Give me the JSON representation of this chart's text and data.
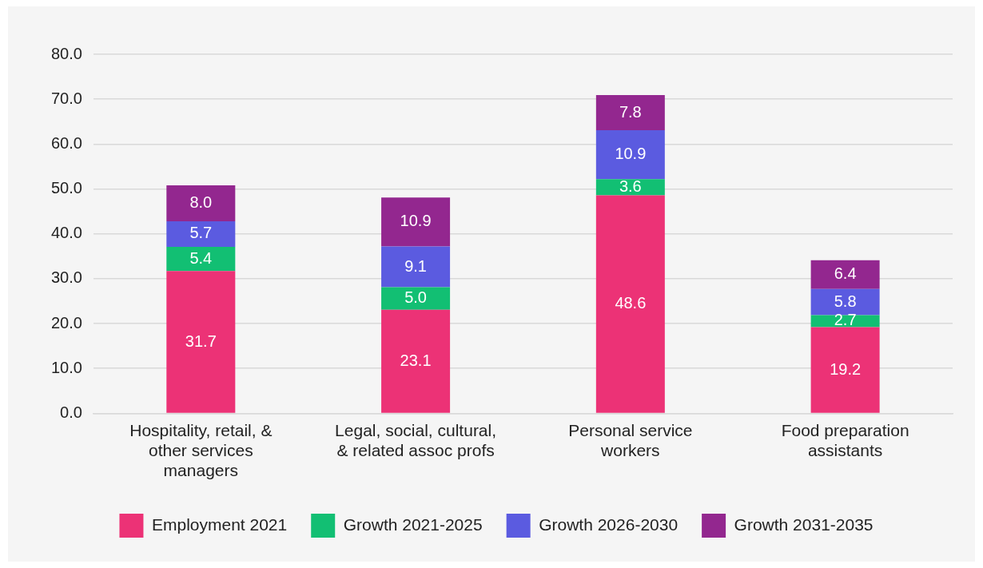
{
  "chart_data": {
    "type": "bar",
    "stacked": true,
    "categories": [
      "Hospitality, retail, & other services managers",
      "Legal, social, cultural, & related assoc profs",
      "Personal service workers",
      "Food preparation assistants"
    ],
    "series": [
      {
        "name": "Employment 2021",
        "color": "#ec3276",
        "values": [
          31.7,
          23.1,
          48.6,
          19.2
        ],
        "value_labels": [
          "31.7",
          "23.1",
          "48.6",
          "19.2"
        ]
      },
      {
        "name": "Growth 2021-2025",
        "color": "#12bf73",
        "values": [
          5.4,
          5.0,
          3.6,
          2.7
        ],
        "value_labels": [
          "5.4",
          "5.0",
          "3.6",
          "2.7"
        ]
      },
      {
        "name": "Growth 2026-2030",
        "color": "#5b5be0",
        "values": [
          5.7,
          9.1,
          10.9,
          5.8
        ],
        "value_labels": [
          "5.7",
          "9.1",
          "10.9",
          "5.8"
        ]
      },
      {
        "name": "Growth 2031-2035",
        "color": "#93278f",
        "values": [
          8.0,
          10.9,
          7.8,
          6.4
        ],
        "value_labels": [
          "8.0",
          "10.9",
          "7.8",
          "6.4"
        ]
      }
    ],
    "ylim": [
      0,
      80
    ],
    "yticks": [
      {
        "value": 0,
        "label": "0.0"
      },
      {
        "value": 10,
        "label": "10.0"
      },
      {
        "value": 20,
        "label": "20.0"
      },
      {
        "value": 30,
        "label": "30.0"
      },
      {
        "value": 40,
        "label": "40.0"
      },
      {
        "value": 50,
        "label": "50.0"
      },
      {
        "value": 60,
        "label": "60.0"
      },
      {
        "value": 70,
        "label": "70.0"
      },
      {
        "value": 80,
        "label": "80.0"
      }
    ],
    "grid": "y",
    "legend": "bottom"
  }
}
